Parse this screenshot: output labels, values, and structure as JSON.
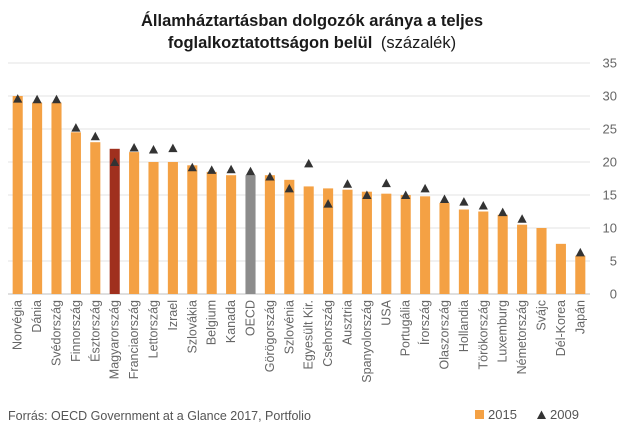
{
  "chart_data": {
    "type": "bar",
    "title": "Államháztartásban dolgozók aránya a teljes",
    "title_line2": "foglalkoztatottságon belül",
    "title_suffix": "(százalék)",
    "yticks": [
      "0",
      "5",
      "10",
      "15",
      "20",
      "25",
      "30",
      "35"
    ],
    "ylim": [
      0,
      35
    ],
    "categories": [
      "Norvégia",
      "Dánia",
      "Svédország",
      "Finnország",
      "Észtország",
      "Magyarország",
      "Franciaország",
      "Lettország",
      "Izrael",
      "Szlovákia",
      "Belgium",
      "Kanada",
      "OECD",
      "Görögország",
      "Szlovénia",
      "Egyesült Kir.",
      "Csehország",
      "Ausztria",
      "Spanyolország",
      "USA",
      "Portugália",
      "Írország",
      "Olaszország",
      "Hollandia",
      "Törökország",
      "Luxemburg",
      "Németország",
      "Svájc",
      "Dél-Korea",
      "Japán"
    ],
    "series": [
      {
        "name": "2015",
        "type": "bar",
        "color": "#F4A144",
        "values": [
          30.0,
          29.0,
          29.0,
          24.5,
          23.0,
          22.0,
          21.5,
          20.0,
          20.0,
          19.5,
          18.5,
          18.0,
          18.0,
          18.0,
          17.3,
          16.3,
          16.0,
          15.8,
          15.5,
          15.2,
          15.0,
          14.8,
          13.8,
          12.8,
          12.5,
          12.0,
          10.5,
          10.0,
          7.6,
          5.8
        ]
      },
      {
        "name": "2009",
        "type": "marker",
        "color": "#333333",
        "values": [
          29.6,
          29.5,
          29.5,
          25.2,
          23.9,
          20.0,
          22.2,
          21.9,
          22.1,
          19.2,
          18.8,
          18.9,
          18.6,
          17.8,
          16.0,
          19.8,
          13.7,
          16.7,
          15.0,
          16.8,
          15.0,
          16.0,
          14.4,
          14.0,
          13.4,
          12.4,
          11.4,
          null,
          null,
          6.3
        ]
      }
    ],
    "highlight": {
      "Magyarország": "#A0301E",
      "OECD": "#8C8C8C"
    },
    "source": "Forrás: OECD Government at a Glance 2017,  Portfolio",
    "legend": [
      "2015",
      "2009"
    ],
    "legend_position": "bottom-right",
    "grid": true
  }
}
